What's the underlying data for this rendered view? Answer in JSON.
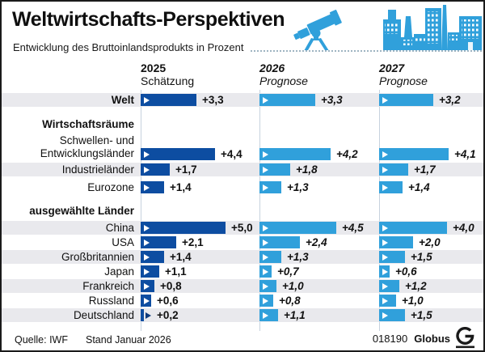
{
  "header": {
    "title": "Weltwirtschafts-Perspektiven",
    "subtitle": "Entwicklung des Bruttoinlandsprodukts in Prozent",
    "icons": [
      "telescope-icon",
      "city-skyline-icon"
    ]
  },
  "columns": [
    {
      "year": "2025",
      "kind": "Schätzung",
      "style": "estimate"
    },
    {
      "year": "2026",
      "kind": "Prognose",
      "style": "forecast"
    },
    {
      "year": "2027",
      "kind": "Prognose",
      "style": "forecast"
    }
  ],
  "rows": [
    {
      "kind": "world",
      "label": "Welt",
      "striped": true,
      "values": [
        3.3,
        3.3,
        3.2
      ],
      "display": [
        "+3,3",
        "+3,3",
        "+3,2"
      ]
    },
    {
      "kind": "section",
      "label": "Wirtschaftsräume"
    },
    {
      "kind": "item",
      "label": "Schwellen- und Entwicklungsländer",
      "label_lines": [
        "Schwellen- und",
        "Entwicklungsländer"
      ],
      "striped": false,
      "values": [
        4.4,
        4.2,
        4.1
      ],
      "display": [
        "+4,4",
        "+4,2",
        "+4,1"
      ]
    },
    {
      "kind": "item",
      "label": "Industrieländer",
      "striped": true,
      "values": [
        1.7,
        1.8,
        1.7
      ],
      "display": [
        "+1,7",
        "+1,8",
        "+1,7"
      ]
    },
    {
      "kind": "item",
      "label": "Eurozone",
      "striped": false,
      "values": [
        1.4,
        1.3,
        1.4
      ],
      "display": [
        "+1,4",
        "+1,3",
        "+1,4"
      ]
    },
    {
      "kind": "section",
      "label": "ausgewählte Länder"
    },
    {
      "kind": "item",
      "label": "China",
      "striped": true,
      "values": [
        5.0,
        4.5,
        4.0
      ],
      "display": [
        "+5,0",
        "+4,5",
        "+4,0"
      ]
    },
    {
      "kind": "item",
      "label": "USA",
      "striped": false,
      "values": [
        2.1,
        2.4,
        2.0
      ],
      "display": [
        "+2,1",
        "+2,4",
        "+2,0"
      ]
    },
    {
      "kind": "item",
      "label": "Großbritannien",
      "striped": true,
      "values": [
        1.4,
        1.3,
        1.5
      ],
      "display": [
        "+1,4",
        "+1,3",
        "+1,5"
      ]
    },
    {
      "kind": "item",
      "label": "Japan",
      "striped": false,
      "values": [
        1.1,
        0.7,
        0.6
      ],
      "display": [
        "+1,1",
        "+0,7",
        "+0,6"
      ]
    },
    {
      "kind": "item",
      "label": "Frankreich",
      "striped": true,
      "values": [
        0.8,
        1.0,
        1.2
      ],
      "display": [
        "+0,8",
        "+1,0",
        "+1,2"
      ]
    },
    {
      "kind": "item",
      "label": "Russland",
      "striped": false,
      "values": [
        0.6,
        0.8,
        1.0
      ],
      "display": [
        "+0,6",
        "+0,8",
        "+1,0"
      ]
    },
    {
      "kind": "item",
      "label": "Deutschland",
      "striped": true,
      "values": [
        0.2,
        1.1,
        1.5
      ],
      "display": [
        "+0,2",
        "+1,1",
        "+1,5"
      ]
    }
  ],
  "footer": {
    "source": "Quelle: IWF",
    "stand": "Stand Januar 2026",
    "graphic_id": "018190",
    "brand": "Globus",
    "logo": "globus-g-logo-icon"
  },
  "colors": {
    "bar_2025_dark_blue": "#0d4da1",
    "bar_forecast_light_blue": "#30a0db",
    "stripe_gray": "#e9e9ed",
    "axis_line": "#c6d2de"
  },
  "chart_data": {
    "type": "bar",
    "title": "Weltwirtschafts-Perspektiven",
    "subtitle": "Entwicklung des Bruttoinlandsprodukts in Prozent",
    "unit": "percent change",
    "categories": [
      "Welt",
      "Schwellen- und Entwicklungsländer",
      "Industrieländer",
      "Eurozone",
      "China",
      "USA",
      "Großbritannien",
      "Japan",
      "Frankreich",
      "Russland",
      "Deutschland"
    ],
    "category_groups": {
      "Wirtschaftsräume": [
        "Schwellen- und Entwicklungsländer",
        "Industrieländer",
        "Eurozone"
      ],
      "ausgewählte Länder": [
        "China",
        "USA",
        "Großbritannien",
        "Japan",
        "Frankreich",
        "Russland",
        "Deutschland"
      ]
    },
    "series": [
      {
        "name": "2025 Schätzung",
        "values": [
          3.3,
          4.4,
          1.7,
          1.4,
          5.0,
          2.1,
          1.4,
          1.1,
          0.8,
          0.6,
          0.2
        ]
      },
      {
        "name": "2026 Prognose",
        "values": [
          3.3,
          4.2,
          1.8,
          1.3,
          4.5,
          2.4,
          1.3,
          0.7,
          1.0,
          0.8,
          1.1
        ]
      },
      {
        "name": "2027 Prognose",
        "values": [
          3.2,
          4.1,
          1.7,
          1.4,
          4.0,
          2.0,
          1.5,
          0.6,
          1.2,
          1.0,
          1.5
        ]
      }
    ],
    "layout": {
      "orientation": "horizontal-bars",
      "columns_side_by_side": 3,
      "grid": false,
      "value_labels": true
    },
    "source": "Quelle: IWF, Stand Januar 2026"
  }
}
